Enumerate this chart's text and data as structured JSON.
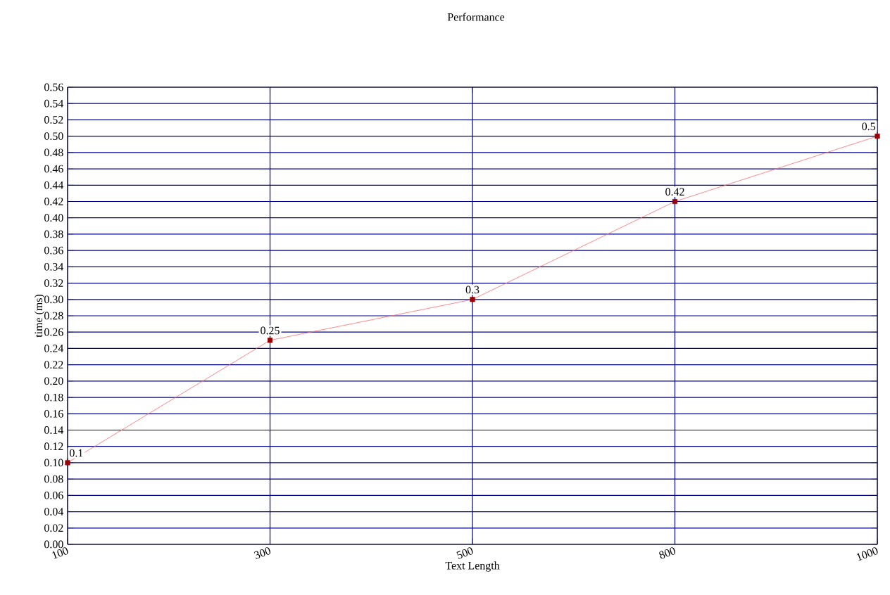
{
  "chart_data": {
    "type": "line",
    "title": "Performance",
    "xlabel": "Text Length",
    "ylabel": "time (ms)",
    "categories": [
      "100",
      "300",
      "500",
      "800",
      "1000"
    ],
    "series": [
      {
        "color": "#ff6b6b",
        "values": [
          0.1,
          0.25,
          0.3,
          0.42,
          0.5
        ]
      }
    ],
    "ylim": [
      0,
      0.56
    ],
    "yticks": [
      {
        "value": 0.0,
        "label": "0.00"
      },
      {
        "value": 0.02,
        "label": "0.02"
      },
      {
        "value": 0.04,
        "label": "0.04"
      },
      {
        "value": 0.06,
        "label": "0.06"
      },
      {
        "value": 0.08,
        "label": "0.08"
      },
      {
        "value": 0.1,
        "label": "0.10"
      },
      {
        "value": 0.12,
        "label": "0.12"
      },
      {
        "value": 0.14,
        "label": "0.14"
      },
      {
        "value": 0.16,
        "label": "0.16"
      },
      {
        "value": 0.18,
        "label": "0.18"
      },
      {
        "value": 0.2,
        "label": "0.20"
      },
      {
        "value": 0.22,
        "label": "0.22"
      },
      {
        "value": 0.24,
        "label": "0.24"
      },
      {
        "value": 0.26,
        "label": "0.26"
      },
      {
        "value": 0.28,
        "label": "0.28"
      },
      {
        "value": 0.3,
        "label": "0.30"
      },
      {
        "value": 0.32,
        "label": "0.32"
      },
      {
        "value": 0.34,
        "label": "0.34"
      },
      {
        "value": 0.36,
        "label": "0.36"
      },
      {
        "value": 0.38,
        "label": "0.38"
      },
      {
        "value": 0.4,
        "label": "0.40"
      },
      {
        "value": 0.42,
        "label": "0.42"
      },
      {
        "value": 0.44,
        "label": "0.44"
      },
      {
        "value": 0.46,
        "label": "0.46"
      },
      {
        "value": 0.48,
        "label": "0.48"
      },
      {
        "value": 0.5,
        "label": "0.50"
      },
      {
        "value": 0.52,
        "label": "0.52"
      },
      {
        "value": 0.54,
        "label": "0.54"
      },
      {
        "value": 0.56,
        "label": "0.56"
      }
    ],
    "grid": true,
    "marker": "square",
    "line_style": "solid",
    "data_labels": true
  }
}
